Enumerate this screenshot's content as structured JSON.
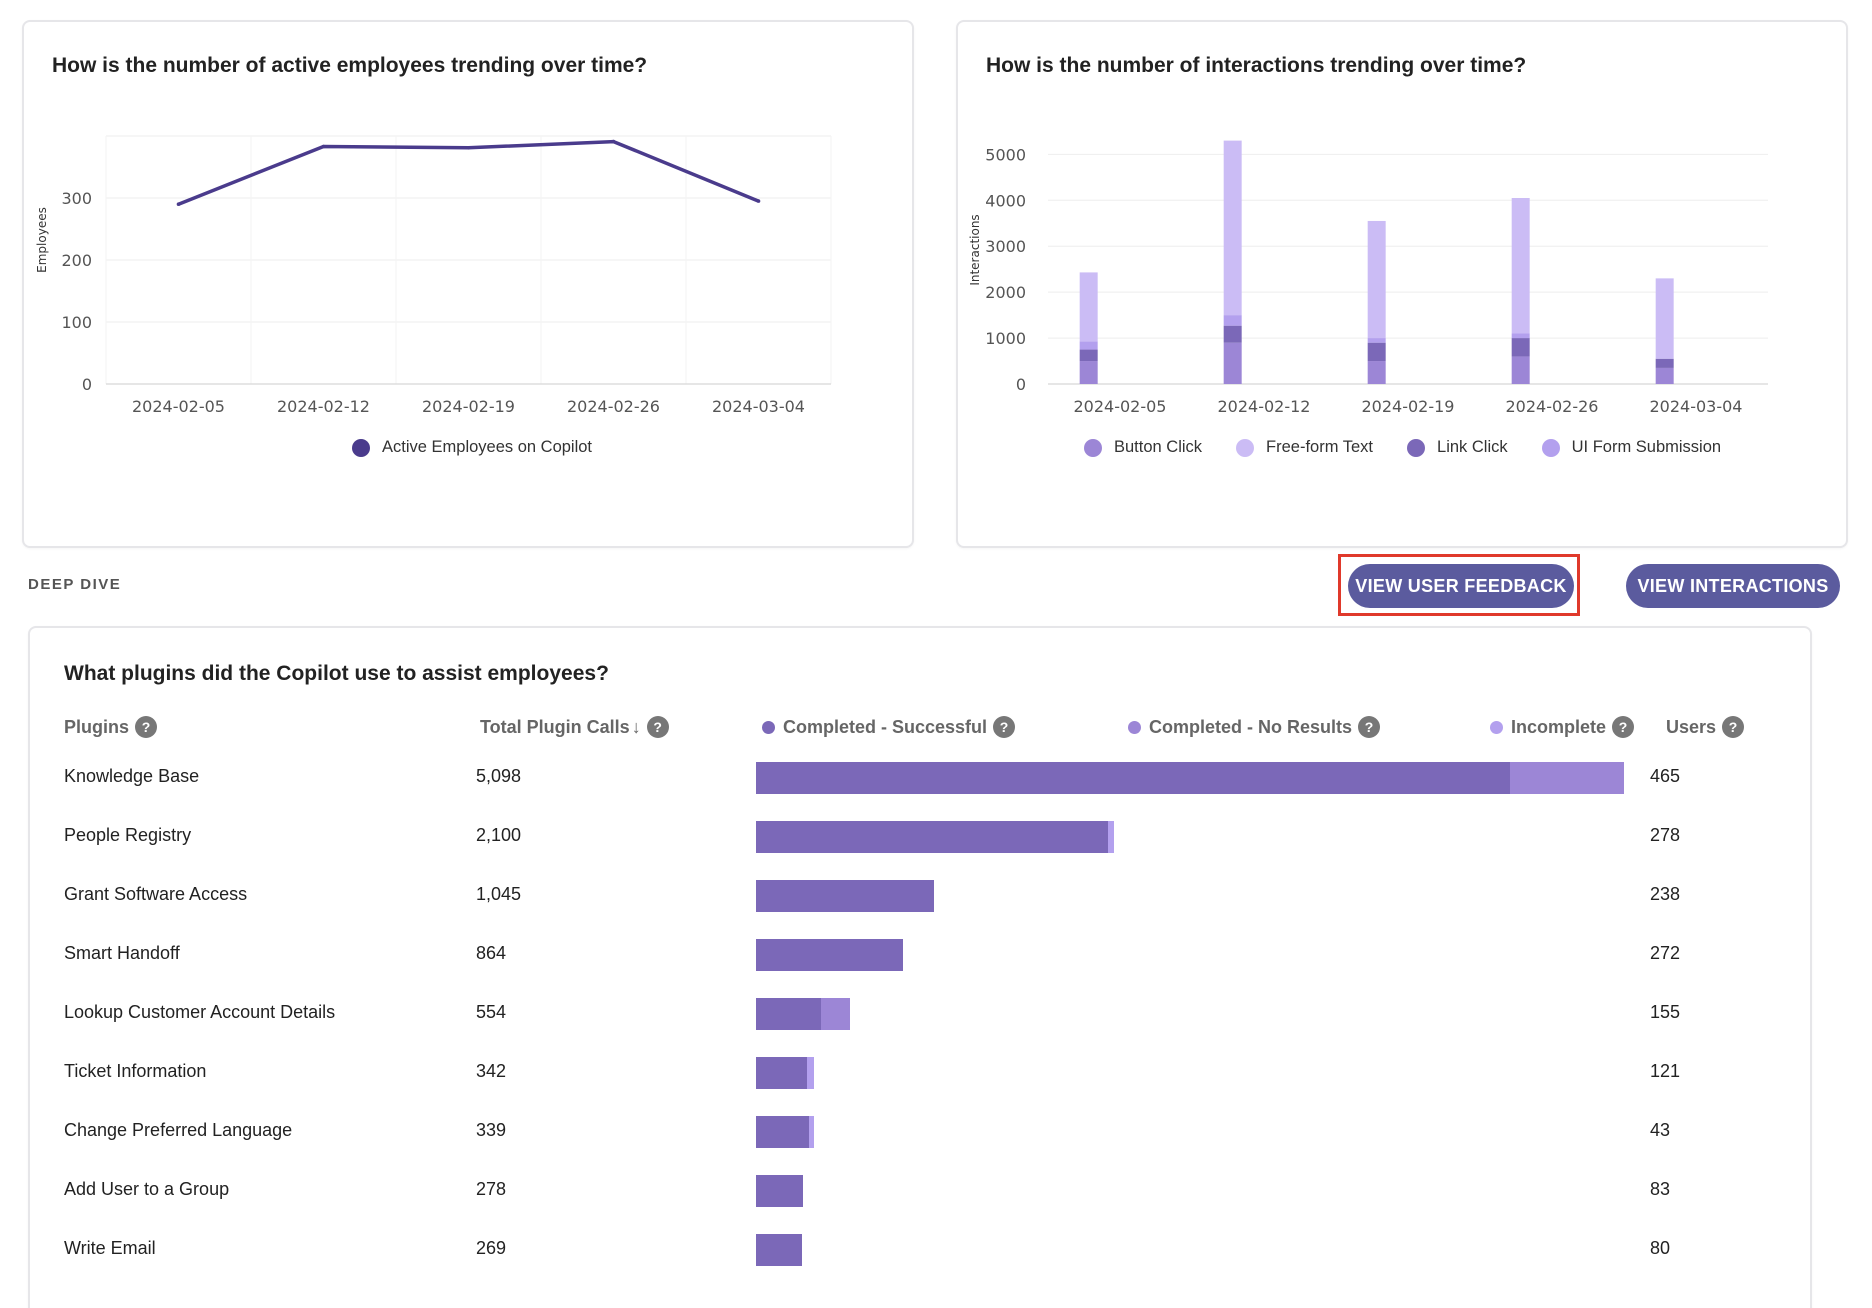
{
  "employees_chart": {
    "title": "How is the number of active employees trending over time?",
    "chart_data": {
      "type": "line",
      "x": [
        "2024-02-05",
        "2024-02-12",
        "2024-02-19",
        "2024-02-26",
        "2024-03-04"
      ],
      "series": [
        {
          "name": "Active Employees on Copilot",
          "values": [
            290,
            383,
            381,
            391,
            295
          ],
          "color": "#4a3b8c"
        }
      ],
      "ylabel": "Employees",
      "yticks": [
        0,
        100,
        200,
        300
      ],
      "ylim": [
        0,
        400
      ],
      "grid": true,
      "legend": "bottom"
    }
  },
  "interactions_chart": {
    "title": "How is the number of interactions trending over time?",
    "chart_data": {
      "type": "bar",
      "stacked": true,
      "categories": [
        "2024-02-05",
        "2024-02-12",
        "2024-02-19",
        "2024-02-26",
        "2024-03-04"
      ],
      "series": [
        {
          "name": "Button Click",
          "values": [
            500,
            900,
            500,
            600,
            350
          ],
          "color": "#9c86d6"
        },
        {
          "name": "Free-form Text",
          "values": [
            1500,
            3800,
            2550,
            2950,
            1750
          ],
          "color": "#cbbcf5"
        },
        {
          "name": "Link Click",
          "values": [
            250,
            370,
            400,
            400,
            200
          ],
          "color": "#7b68b8"
        },
        {
          "name": "UI Form Submission",
          "values": [
            180,
            230,
            100,
            100,
            0
          ],
          "color": "#b3a0ee"
        }
      ],
      "ylabel": "Interactions",
      "yticks": [
        0,
        1000,
        2000,
        3000,
        4000,
        5000
      ],
      "ylim": [
        0,
        5400
      ],
      "grid": true,
      "legend": "bottom"
    }
  },
  "section_label": "DEEP DIVE",
  "buttons": {
    "feedback": "VIEW USER FEEDBACK",
    "interactions": "VIEW INTERACTIONS"
  },
  "plugins": {
    "title": "What plugins did the Copilot use to assist employees?",
    "help_glyph": "?",
    "sort_glyph": "↓",
    "columns": {
      "plugin": "Plugins",
      "calls": "Total Plugin Calls",
      "successful": "Completed - Successful",
      "no_results": "Completed - No Results",
      "incomplete": "Incomplete",
      "users": "Users"
    },
    "colors": {
      "successful": "#7b68b8",
      "no_results": "#9c86d6",
      "incomplete": "#b3a0ee"
    },
    "rows": [
      {
        "name": "Knowledge Base",
        "calls": "5,098",
        "users": "465",
        "successful": 4430,
        "no_results": 668,
        "incomplete": 0
      },
      {
        "name": "People Registry",
        "calls": "2,100",
        "users": "278",
        "successful": 2070,
        "no_results": 0,
        "incomplete": 30
      },
      {
        "name": "Grant Software Access",
        "calls": "1,045",
        "users": "238",
        "successful": 1045,
        "no_results": 0,
        "incomplete": 0
      },
      {
        "name": "Smart Handoff",
        "calls": "864",
        "users": "272",
        "successful": 864,
        "no_results": 0,
        "incomplete": 0
      },
      {
        "name": "Lookup Customer Account Details",
        "calls": "554",
        "users": "155",
        "successful": 380,
        "no_results": 174,
        "incomplete": 0
      },
      {
        "name": "Ticket Information",
        "calls": "342",
        "users": "121",
        "successful": 302,
        "no_results": 0,
        "incomplete": 40
      },
      {
        "name": "Change Preferred Language",
        "calls": "339",
        "users": "43",
        "successful": 312,
        "no_results": 0,
        "incomplete": 27
      },
      {
        "name": "Add User to a Group",
        "calls": "278",
        "users": "83",
        "successful": 278,
        "no_results": 0,
        "incomplete": 0
      },
      {
        "name": "Write Email",
        "calls": "269",
        "users": "80",
        "successful": 269,
        "no_results": 0,
        "incomplete": 0
      }
    ]
  }
}
